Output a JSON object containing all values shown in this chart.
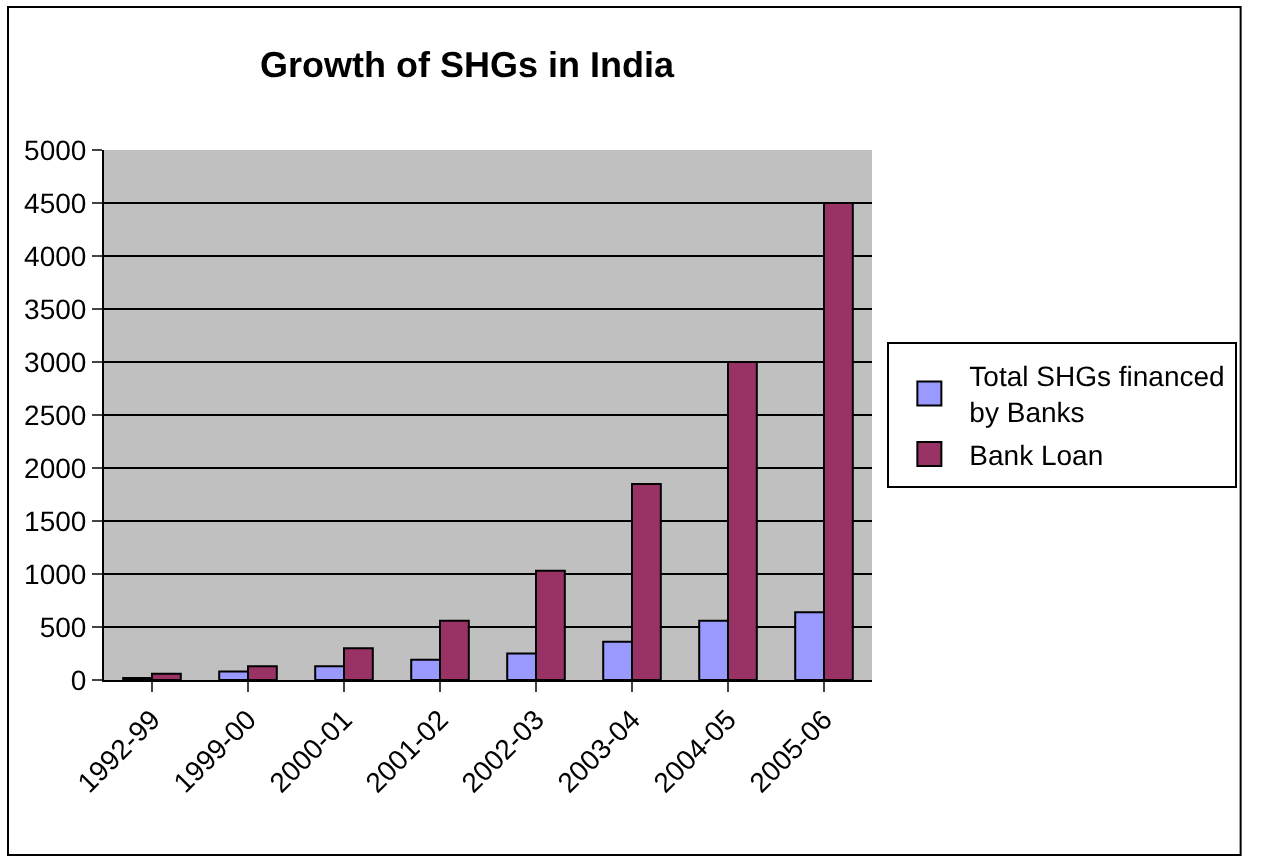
{
  "chart_data": {
    "type": "bar",
    "title": "Growth of SHGs in India",
    "categories": [
      "1992-99",
      "1999-00",
      "2000-01",
      "2001-02",
      "2002-03",
      "2003-04",
      "2004-05",
      "2005-06"
    ],
    "series": [
      {
        "name": "Total SHGs financed by Banks",
        "color": "#9999ff",
        "values": [
          20,
          80,
          130,
          190,
          250,
          360,
          560,
          640
        ]
      },
      {
        "name": "Bank Loan",
        "color": "#993366",
        "values": [
          60,
          130,
          300,
          560,
          1030,
          1850,
          3000,
          4500
        ]
      }
    ],
    "ylim": [
      0,
      5000
    ],
    "yticks": [
      0,
      500,
      1000,
      1500,
      2000,
      2500,
      3000,
      3500,
      4000,
      4500,
      5000
    ],
    "grid": "y",
    "legend": "right"
  }
}
